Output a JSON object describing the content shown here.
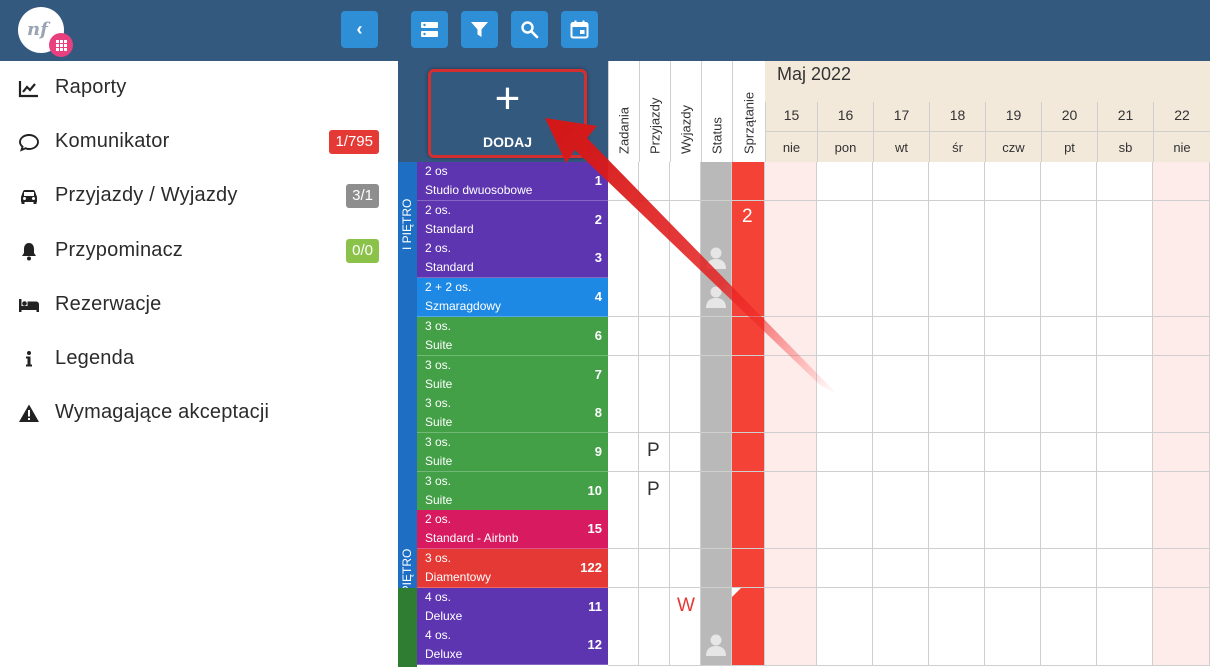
{
  "sidebar": {
    "collapse_icon": "chevron-left-icon",
    "items": [
      {
        "label": "Raporty",
        "icon": "chart-line-icon"
      },
      {
        "label": "Komunikator",
        "icon": "chat-bubble-icon",
        "badge": "1/795",
        "badge_color": "#e53935"
      },
      {
        "label": "Przyjazdy / Wyjazdy",
        "icon": "car-icon",
        "badge": "3/1",
        "badge_color": "#8e8e8e"
      },
      {
        "label": "Przypominacz",
        "icon": "bell-icon",
        "badge": "0/0",
        "badge_color": "#8bc34a"
      },
      {
        "label": "Rezerwacje",
        "icon": "bed-icon"
      },
      {
        "label": "Legenda",
        "icon": "info-icon"
      },
      {
        "label": "Wymagające akceptacji",
        "icon": "warning-icon"
      }
    ]
  },
  "toolbar": {
    "buttons": [
      "server-icon",
      "filter-icon",
      "search-icon",
      "calendar-icon"
    ]
  },
  "grid": {
    "add_label": "DODAJ",
    "add_symbol": "+",
    "columns": [
      "Zadania",
      "Przyjazdy",
      "Wyjazdy",
      "Status",
      "Sprzątanie"
    ],
    "month": "Maj 2022",
    "days": [
      {
        "num": "15",
        "name": "nie",
        "weekend": true
      },
      {
        "num": "16",
        "name": "pon",
        "weekend": false
      },
      {
        "num": "17",
        "name": "wt",
        "weekend": false
      },
      {
        "num": "18",
        "name": "śr",
        "weekend": false
      },
      {
        "num": "19",
        "name": "czw",
        "weekend": false
      },
      {
        "num": "20",
        "name": "pt",
        "weekend": false
      },
      {
        "num": "21",
        "name": "sb",
        "weekend": false
      },
      {
        "num": "22",
        "name": "nie",
        "weekend": true
      }
    ],
    "floors": [
      {
        "label": "I PIĘTRO",
        "color": "#1e6fc4"
      },
      {
        "label": "I PIĘTRO",
        "color": "#1e6fc4"
      },
      {
        "label": "",
        "color": "#2e7d32"
      }
    ],
    "rooms": [
      {
        "cap": "2 os",
        "type": "Studio dwuosobowe",
        "num": "1",
        "color": "#5e35b1",
        "arrivals": "",
        "departures": "",
        "status_guest": false
      },
      {
        "cap": "2 os.",
        "type": "Standard",
        "num": "2",
        "color": "#5e35b1",
        "arrivals": "",
        "departures": "",
        "status_guest": false
      },
      {
        "cap": "2 os.",
        "type": "Standard",
        "num": "3",
        "color": "#5e35b1",
        "arrivals": "",
        "departures": "",
        "status_guest": true
      },
      {
        "cap": "2 + 2 os.",
        "type": "Szmaragdowy",
        "num": "4",
        "color": "#1e88e5",
        "arrivals": "",
        "departures": "",
        "status_guest": true
      },
      {
        "cap": "3 os.",
        "type": "Suite",
        "num": "6",
        "color": "#43a047",
        "arrivals": "",
        "departures": "",
        "status_guest": false
      },
      {
        "cap": "3 os.",
        "type": "Suite",
        "num": "7",
        "color": "#43a047",
        "arrivals": "",
        "departures": "",
        "status_guest": false
      },
      {
        "cap": "3 os.",
        "type": "Suite",
        "num": "8",
        "color": "#43a047",
        "arrivals": "",
        "departures": "",
        "status_guest": false
      },
      {
        "cap": "3 os.",
        "type": "Suite",
        "num": "9",
        "color": "#43a047",
        "arrivals": "P",
        "departures": "",
        "status_guest": false
      },
      {
        "cap": "3 os.",
        "type": "Suite",
        "num": "10",
        "color": "#43a047",
        "arrivals": "P",
        "departures": "",
        "status_guest": false
      },
      {
        "cap": "2 os.",
        "type": "Standard - Airbnb",
        "num": "15",
        "color": "#d81b60",
        "arrivals": "",
        "departures": "",
        "status_guest": false
      },
      {
        "cap": "3 os.",
        "type": "Diamentowy",
        "num": "122",
        "color": "#e53935",
        "arrivals": "",
        "departures": "",
        "status_guest": false
      },
      {
        "cap": "4 os.",
        "type": "Deluxe",
        "num": "11",
        "color": "#5e35b1",
        "arrivals": "",
        "departures": "W",
        "status_guest": false
      },
      {
        "cap": "4 os.",
        "type": "Deluxe",
        "num": "12",
        "color": "#5e35b1",
        "arrivals": "",
        "departures": "",
        "status_guest": true
      }
    ],
    "cleaning_count": "2",
    "colors": {
      "header": "#34597f",
      "button": "#2f8fd6",
      "status_col": "#b9b9b9",
      "cleaning_col": "#f44336",
      "weekend_bg": "#fdecea",
      "month_bg": "#f3e9db",
      "highlight": "#d32f2f"
    }
  }
}
